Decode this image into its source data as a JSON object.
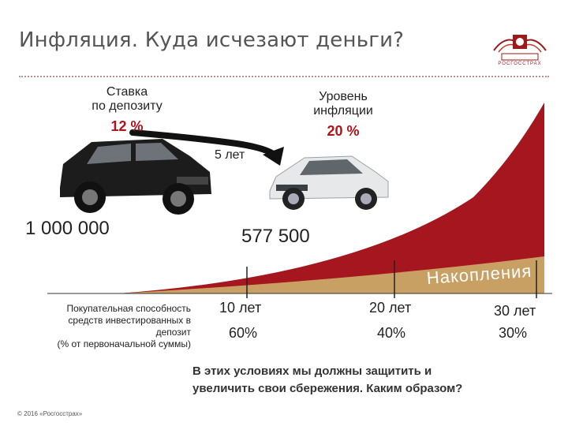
{
  "slide": {
    "title": "Инфляция. Куда исчезают деньги?",
    "logo_text": "РОСГОССТРАХ"
  },
  "deposit": {
    "label_line1": "Ставка",
    "label_line2": "по депозиту",
    "rate": "12 %"
  },
  "inflation": {
    "label_line1": "Уровень",
    "label_line2": "инфляции",
    "rate": "20 %"
  },
  "arrow_label": "5 лет",
  "amounts": {
    "initial": "1 000 000",
    "after": "577 500"
  },
  "chart_data": {
    "type": "area",
    "series": [
      {
        "name": "Инфляция"
      },
      {
        "name": "Накопления"
      }
    ],
    "x": [
      "10 лет",
      "20 лет",
      "30 лет"
    ],
    "values": [
      "60%",
      "40%",
      "30%"
    ],
    "row_label_line1": "Покупательная способность",
    "row_label_line2": "средств инвестированных в",
    "row_label_line3": "депозит",
    "row_label_line4": "(% от первоначальной суммы)",
    "colors": {
      "inflation": "#a5161e",
      "savings": "#c9a063"
    }
  },
  "conclusion_line1": "В этих условиях мы должны защитить и",
  "conclusion_line2": "увеличить свои сбережения. Каким образом?",
  "footer": "© 2016 «Росгосстрах»"
}
